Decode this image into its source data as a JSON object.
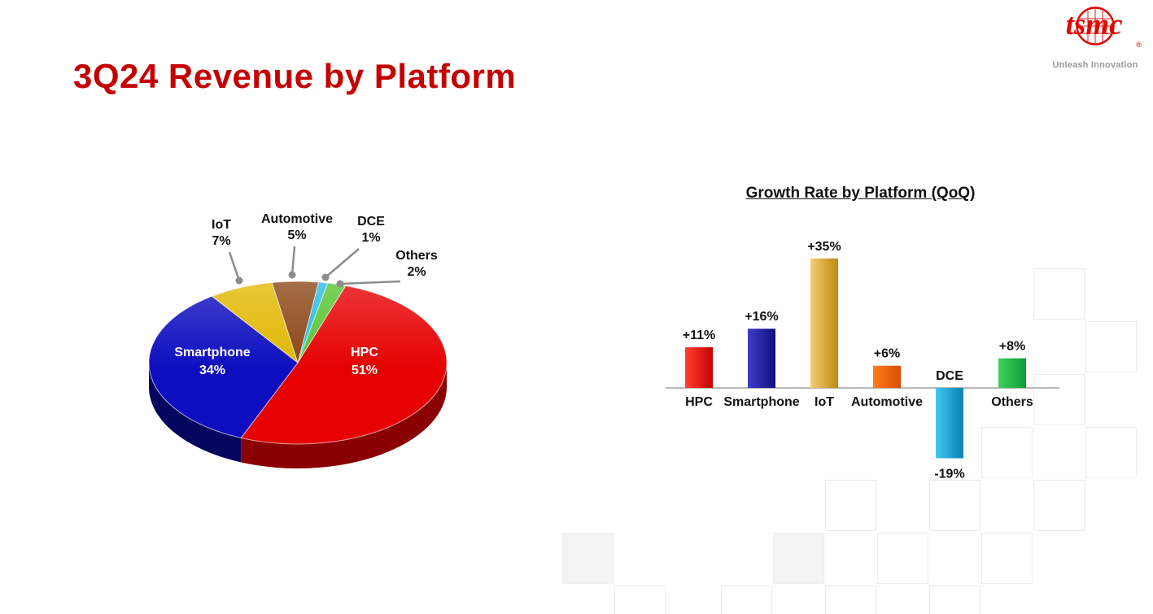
{
  "page": {
    "title": "3Q24 Revenue by Platform"
  },
  "logo": {
    "brand": "tsmc",
    "registered": "®",
    "tagline": "Unleash Innovation"
  },
  "chart_data": [
    {
      "type": "pie",
      "name": "3Q24 Revenue by Platform",
      "unit": "%",
      "slices": [
        {
          "label": "DCE",
          "value": 1,
          "display": "1%",
          "color": "#29b8e8",
          "side": "#14789c"
        },
        {
          "label": "Others",
          "value": 2,
          "display": "2%",
          "color": "#55c430",
          "side": "#367f1d"
        },
        {
          "label": "HPC",
          "value": 51,
          "display": "51%",
          "color": "#e60000",
          "side": "#8a0000"
        },
        {
          "label": "Smartphone",
          "value": 34,
          "display": "34%",
          "color": "#0d0dbf",
          "side": "#06065e"
        },
        {
          "label": "IoT",
          "value": 7,
          "display": "7%",
          "color": "#e2b700",
          "side": "#93760a"
        },
        {
          "label": "Automotive",
          "value": 5,
          "display": "5%",
          "color": "#8a4514",
          "side": "#53290a"
        }
      ]
    },
    {
      "type": "bar",
      "title": "Growth Rate by Platform (QoQ)",
      "categories": [
        "HPC",
        "Smartphone",
        "IoT",
        "Automotive",
        "DCE",
        "Others"
      ],
      "values": [
        11,
        16,
        35,
        6,
        -19,
        8
      ],
      "value_labels": [
        "+11%",
        "+16%",
        "+35%",
        "+6%",
        "-19%",
        "+8%"
      ],
      "colors": [
        {
          "from": "#ff4033",
          "to": "#c40000"
        },
        {
          "from": "#3c3ccd",
          "to": "#11117a"
        },
        {
          "from": "#f4cd72",
          "to": "#bf8a10"
        },
        {
          "from": "#ff7d1f",
          "to": "#d94e00"
        },
        {
          "from": "#41c8f2",
          "to": "#0683b4"
        },
        {
          "from": "#41d15e",
          "to": "#0c9c38"
        }
      ],
      "axis_color": "#a0a0a0",
      "ylim": [
        -19,
        35
      ],
      "legend": false
    }
  ]
}
